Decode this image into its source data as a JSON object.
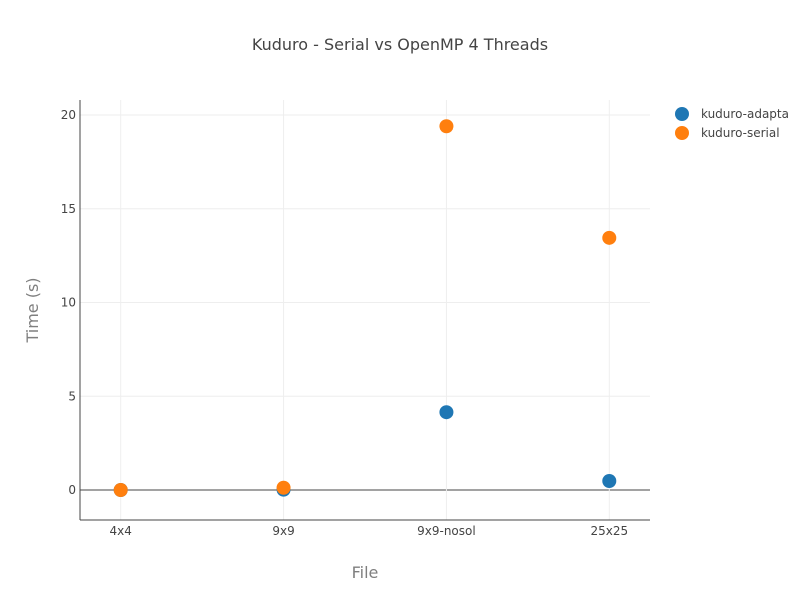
{
  "chart_data": {
    "type": "scatter",
    "title": "Kuduro - Serial vs OpenMP 4 Threads",
    "xlabel": "File",
    "ylabel": "Time (s)",
    "categories": [
      "4x4",
      "9x9",
      "9x9-nosol",
      "25x25"
    ],
    "ylim": [
      -1.6,
      20.8
    ],
    "yticks": [
      0,
      5,
      10,
      15,
      20
    ],
    "grid": true,
    "legend_position": "top-right",
    "series": [
      {
        "name": "kuduro-adapta",
        "color": "#1f77b4",
        "values": [
          0.0,
          0.02,
          4.15,
          0.48
        ]
      },
      {
        "name": "kuduro-serial",
        "color": "#ff7f0e",
        "values": [
          0.0,
          0.12,
          19.4,
          13.45
        ]
      }
    ]
  }
}
